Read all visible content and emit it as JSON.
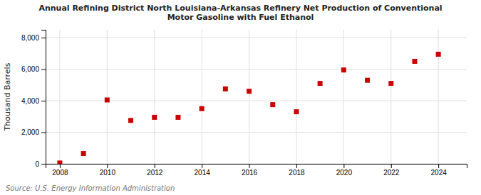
{
  "chart_data": {
    "type": "scatter",
    "title": "Annual Refining District North Louisiana-Arkansas Refinery Net Production of Conventional\nMotor Gasoline with Fuel Ethanol",
    "y_label": "Thousand Barrels",
    "annotation": "Source: U.S. Energy Information Administration",
    "x": [
      2008,
      2009,
      2010,
      2011,
      2012,
      2013,
      2014,
      2015,
      2016,
      2017,
      2018,
      2019,
      2020,
      2021,
      2022,
      2023,
      2024
    ],
    "values": [
      50,
      650,
      4050,
      2750,
      2950,
      2950,
      3500,
      4750,
      4600,
      3750,
      3300,
      5100,
      5950,
      5300,
      5100,
      6500,
      6950
    ],
    "color": "#CC0000",
    "marker": "square",
    "xlim": [
      2007.4,
      2025.2
    ],
    "ylim": [
      0,
      8500
    ],
    "xticks": [
      2008,
      2010,
      2012,
      2014,
      2016,
      2018,
      2020,
      2022,
      2024
    ],
    "yticks": [
      0,
      {
        "value": 2000,
        "label": "2,000"
      },
      {
        "value": 4000,
        "label": "4,000"
      },
      {
        "value": 6000,
        "label": "6,000"
      },
      {
        "value": 8000,
        "label": "8,000"
      }
    ],
    "grid": true
  }
}
